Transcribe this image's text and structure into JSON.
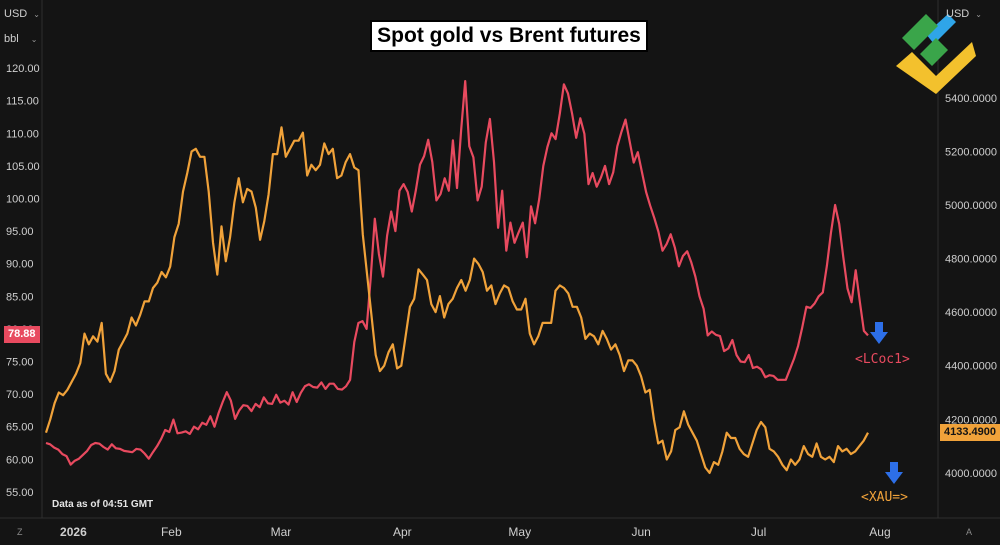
{
  "controls": {
    "left_currency": "USD",
    "left_unit": "bbl",
    "right_currency": "USD"
  },
  "corner_labels": {
    "left": "Z",
    "right": "A"
  },
  "note": "Data as of 04:51 GMT",
  "logo_icon": "brand-logo-icon",
  "chart_data": {
    "type": "line",
    "title": "Spot gold vs Brent futures",
    "x_ticks": [
      "2026",
      "Feb",
      "Mar",
      "Apr",
      "May",
      "Jun",
      "Jul",
      "Aug"
    ],
    "left_axis": {
      "ticks": [
        "55.00",
        "60.00",
        "65.00",
        "70.00",
        "75.00",
        "80.00",
        "85.00",
        "90.00",
        "95.00",
        "100.00",
        "105.00",
        "110.00",
        "115.00",
        "120.00"
      ],
      "ylim": [
        53,
        122
      ]
    },
    "right_axis": {
      "ticks": [
        "4000.0000",
        "4200.0000",
        "4400.0000",
        "4600.0000",
        "4800.0000",
        "5000.0000",
        "5200.0000",
        "5400.0000"
      ],
      "ylim": [
        3880,
        5560
      ]
    },
    "grid": false,
    "series": [
      {
        "name": "<LCoc1>",
        "axis": "left",
        "color": "#e84a5f",
        "last_value_label": "78.88",
        "values": [
          62.5,
          62.3,
          61.8,
          61.5,
          60.8,
          60.5,
          59.2,
          59.8,
          60.1,
          60.7,
          61.3,
          62.2,
          62.5,
          62.4,
          61.9,
          61.5,
          62.3,
          61.7,
          61.6,
          61.3,
          61.2,
          61.1,
          61.6,
          61.5,
          60.9,
          60.1,
          61.1,
          62.0,
          63.1,
          64.5,
          64.2,
          66.1,
          64.0,
          64.1,
          64.3,
          63.9,
          65.0,
          64.6,
          65.6,
          65.3,
          66.6,
          65.0,
          67.1,
          68.8,
          70.3,
          69.0,
          66.2,
          67.5,
          68.3,
          68.2,
          67.4,
          68.5,
          68.0,
          69.5,
          68.6,
          68.5,
          69.9,
          68.7,
          69.0,
          68.4,
          70.3,
          68.8,
          70.2,
          71.2,
          71.5,
          71.1,
          71.0,
          71.8,
          70.8,
          71.6,
          71.6,
          70.8,
          70.7,
          71.2,
          72.2,
          78.0,
          80.9,
          81.2,
          80.0,
          87.8,
          96.9,
          91.5,
          88.0,
          94.3,
          98.0,
          95.0,
          101.2,
          102.2,
          101.0,
          98.0,
          101.3,
          105.2,
          106.5,
          109.0,
          105.6,
          99.7,
          100.7,
          103.1,
          101.2,
          108.9,
          101.6,
          110.4,
          118.0,
          108.0,
          106.3,
          99.7,
          101.8,
          108.6,
          112.2,
          105.6,
          95.5,
          101.2,
          92.0,
          96.3,
          93.2,
          94.8,
          96.3,
          91.0,
          98.8,
          96.2,
          99.9,
          105.0,
          107.9,
          110.0,
          109.1,
          113.0,
          117.5,
          116.1,
          113.0,
          109.3,
          112.3,
          109.9,
          102.2,
          103.9,
          101.8,
          103.2,
          105.0,
          102.2,
          104.0,
          108.0,
          110.2,
          112.1,
          108.8,
          105.5,
          107.1,
          104.0,
          101.0,
          98.9,
          97.0,
          94.9,
          92.0,
          93.0,
          94.5,
          92.5,
          89.6,
          91.2,
          91.9,
          90.2,
          88.0,
          85.0,
          83.1,
          79.0,
          79.6,
          79.1,
          78.9,
          76.6,
          77.0,
          78.3,
          76.0,
          75.0,
          74.9,
          76.0,
          74.0,
          74.2,
          73.8,
          72.6,
          72.9,
          72.8,
          72.2,
          72.2,
          72.2,
          73.8,
          75.4,
          77.4,
          80.2,
          83.4,
          83.2,
          83.9,
          85.0,
          85.6,
          89.7,
          94.8,
          99.0,
          96.1,
          91.0,
          86.2,
          84.1,
          89.0,
          84.2,
          79.7,
          79.0
        ]
      },
      {
        "name": "<XAU=>",
        "axis": "right",
        "color": "#f0a23a",
        "last_value_label": "4133.4900",
        "values": [
          4150,
          4200,
          4260,
          4300,
          4290,
          4310,
          4340,
          4370,
          4410,
          4520,
          4480,
          4510,
          4490,
          4560,
          4370,
          4340,
          4380,
          4460,
          4490,
          4520,
          4580,
          4550,
          4590,
          4640,
          4640,
          4690,
          4710,
          4750,
          4730,
          4770,
          4880,
          4930,
          5050,
          5120,
          5200,
          5210,
          5180,
          5180,
          5050,
          4860,
          4740,
          4920,
          4790,
          4880,
          5010,
          5100,
          5010,
          5060,
          5050,
          4990,
          4870,
          4940,
          5040,
          5190,
          5190,
          5290,
          5180,
          5210,
          5240,
          5240,
          5270,
          5110,
          5150,
          5130,
          5150,
          5230,
          5190,
          5210,
          5100,
          5110,
          5160,
          5190,
          5140,
          5130,
          4890,
          4740,
          4590,
          4440,
          4380,
          4400,
          4450,
          4480,
          4390,
          4400,
          4510,
          4620,
          4650,
          4760,
          4740,
          4720,
          4630,
          4600,
          4660,
          4580,
          4630,
          4650,
          4690,
          4720,
          4680,
          4720,
          4800,
          4780,
          4750,
          4680,
          4700,
          4630,
          4670,
          4700,
          4690,
          4640,
          4610,
          4610,
          4650,
          4520,
          4480,
          4510,
          4560,
          4560,
          4560,
          4680,
          4700,
          4690,
          4670,
          4620,
          4620,
          4580,
          4500,
          4520,
          4510,
          4480,
          4530,
          4500,
          4460,
          4480,
          4440,
          4380,
          4420,
          4420,
          4400,
          4360,
          4300,
          4310,
          4200,
          4110,
          4120,
          4050,
          4080,
          4160,
          4170,
          4230,
          4180,
          4150,
          4120,
          4070,
          4020,
          4000,
          4040,
          4030,
          4080,
          4150,
          4130,
          4130,
          4090,
          4070,
          4060,
          4110,
          4160,
          4190,
          4170,
          4090,
          4080,
          4060,
          4030,
          4010,
          4050,
          4030,
          4050,
          4100,
          4070,
          4060,
          4110,
          4060,
          4050,
          4060,
          4040,
          4100,
          4080,
          4090,
          4070,
          4080,
          4100,
          4120,
          4150
        ]
      }
    ]
  }
}
